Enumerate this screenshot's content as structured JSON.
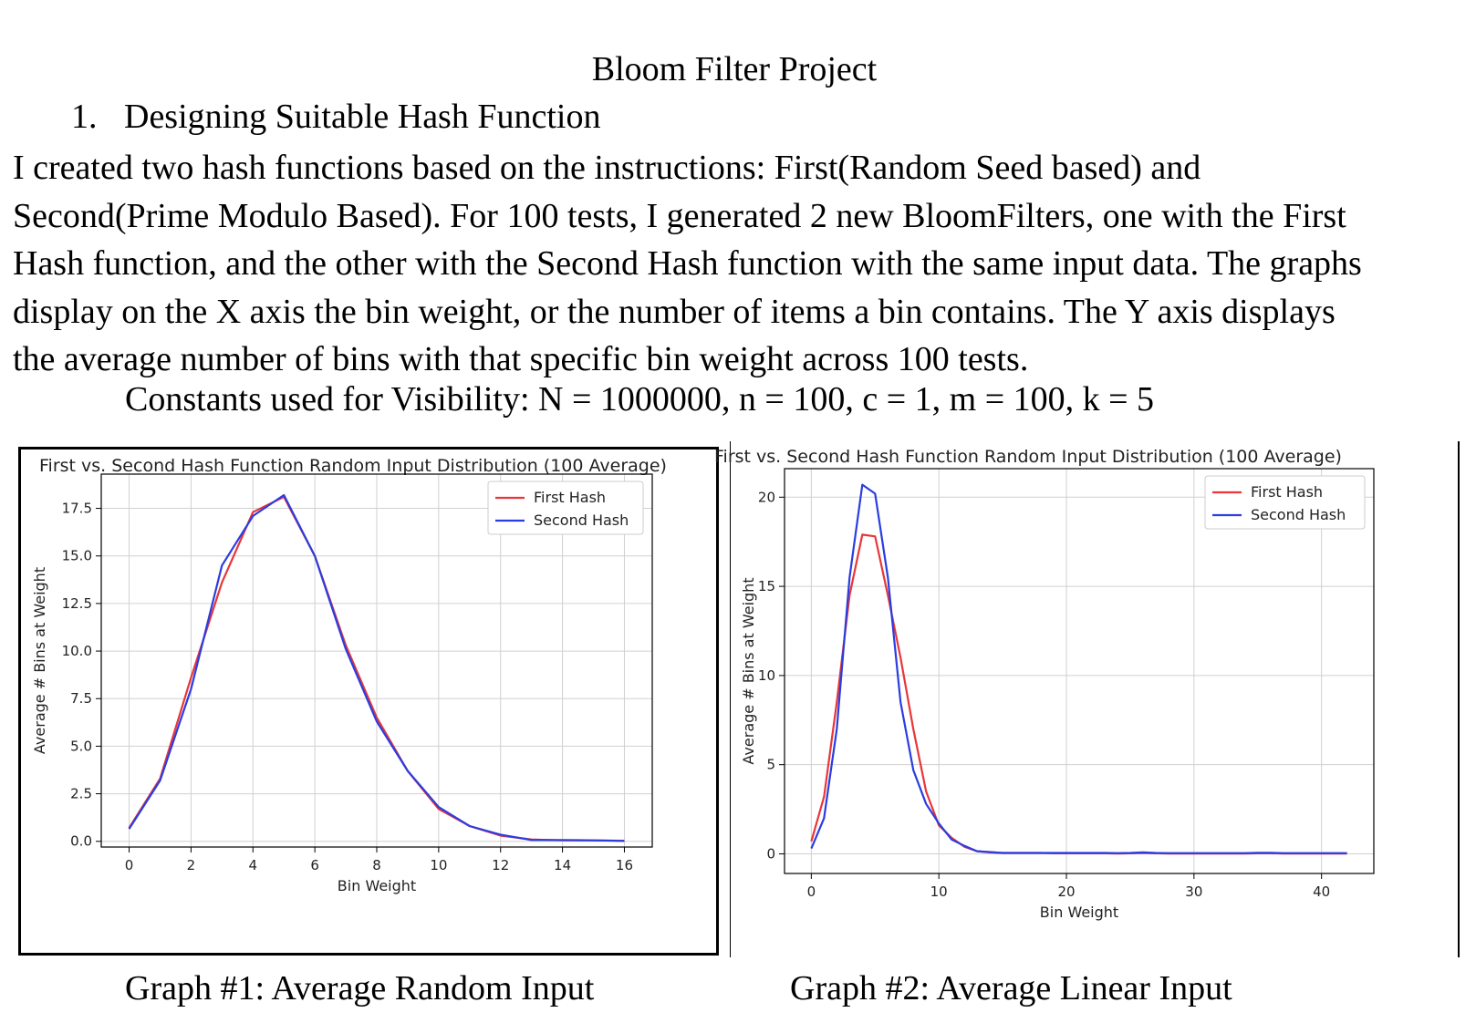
{
  "document": {
    "title": "Bloom Filter Project",
    "section": {
      "number": "1.",
      "heading": "Designing Suitable Hash Function"
    },
    "paragraph_lines": [
      "I created two hash functions based on the instructions: First(Random Seed based) and",
      "Second(Prime Modulo Based). For 100 tests,  I generated 2 new BloomFilters, one with the First",
      "Hash function, and the other with the Second Hash function with the same input data. The graphs",
      "display on the X axis the bin weight, or the number of items a bin contains. The Y axis displays",
      "the average number of bins with that specific bin weight across 100 tests."
    ],
    "constants": "Constants used for Visibility:  N = 1000000, n = 100, c = 1, m = 100, k = 5",
    "captions": [
      "Graph #1: Average Random Input",
      "Graph #2: Average Linear Input"
    ]
  },
  "colors": {
    "first": "#e8363a",
    "second": "#2a3de0",
    "grid": "#d0d0d0",
    "axis": "#000000"
  },
  "chart_data": [
    {
      "type": "line",
      "title": "First vs. Second Hash Function Random Input Distribution (100 Average)",
      "xlabel": "Bin Weight",
      "ylabel": "Average # Bins at Weight",
      "xlim": [
        -0.9,
        16.9
      ],
      "ylim": [
        -0.3,
        19.3
      ],
      "xticks": [
        0,
        2,
        4,
        6,
        8,
        10,
        12,
        14,
        16
      ],
      "yticks": [
        0.0,
        2.5,
        5.0,
        7.5,
        10.0,
        12.5,
        15.0,
        17.5
      ],
      "ytick_labels": [
        "0.0",
        "2.5",
        "5.0",
        "7.5",
        "10.0",
        "12.5",
        "15.0",
        "17.5"
      ],
      "legend": "top-right",
      "grid": true,
      "x": [
        0,
        1,
        2,
        3,
        4,
        5,
        6,
        7,
        8,
        9,
        10,
        11,
        12,
        13,
        14,
        15,
        16
      ],
      "series": [
        {
          "name": "First Hash",
          "color": "#e8363a",
          "values": [
            0.7,
            3.3,
            8.6,
            13.6,
            17.3,
            18.1,
            15.0,
            10.3,
            6.5,
            3.7,
            1.7,
            0.8,
            0.3,
            0.1,
            0.05,
            0.05,
            0.03
          ]
        },
        {
          "name": "Second Hash",
          "color": "#2a3de0",
          "values": [
            0.65,
            3.2,
            8.0,
            14.5,
            17.1,
            18.2,
            15.0,
            10.1,
            6.3,
            3.7,
            1.8,
            0.8,
            0.35,
            0.07,
            0.07,
            0.05,
            0.02
          ]
        }
      ]
    },
    {
      "type": "line",
      "title": "First vs. Second Hash Function Random Input Distribution (100 Average)",
      "xlabel": "Bin Weight",
      "ylabel": "Average # Bins at Weight",
      "xlim": [
        -2.1,
        44.1
      ],
      "ylim": [
        -1.1,
        21.6
      ],
      "xticks": [
        0,
        10,
        20,
        30,
        40
      ],
      "yticks": [
        0,
        5,
        10,
        15,
        20
      ],
      "ytick_labels": [
        "0",
        "5",
        "10",
        "15",
        "20"
      ],
      "legend": "top-right",
      "grid": true,
      "x": [
        0,
        1,
        2,
        3,
        4,
        5,
        6,
        7,
        8,
        9,
        10,
        11,
        12,
        13,
        14,
        15,
        16,
        17,
        18,
        19,
        20,
        21,
        22,
        23,
        24,
        25,
        26,
        27,
        28,
        29,
        30,
        31,
        32,
        33,
        34,
        35,
        36,
        37,
        38,
        39,
        40,
        41,
        42
      ],
      "series": [
        {
          "name": "First Hash",
          "color": "#e8363a",
          "values": [
            0.7,
            3.2,
            8.5,
            14.5,
            17.9,
            17.8,
            14.5,
            11.0,
            7.0,
            3.5,
            1.6,
            0.9,
            0.4,
            0.15,
            0.08,
            0.05,
            0.05,
            0.05,
            0.05,
            0.03,
            0.03,
            0.03,
            0.03,
            0.03,
            0.02,
            0.03,
            0.05,
            0.03,
            0.02,
            0.02,
            0.02,
            0.02,
            0.02,
            0.02,
            0.02,
            0.03,
            0.03,
            0.02,
            0.02,
            0.02,
            0.02,
            0.02,
            0.02
          ]
        },
        {
          "name": "Second Hash",
          "color": "#2a3de0",
          "values": [
            0.3,
            2.0,
            7.0,
            15.5,
            20.7,
            20.2,
            15.5,
            8.5,
            4.7,
            2.8,
            1.7,
            0.8,
            0.45,
            0.15,
            0.1,
            0.05,
            0.05,
            0.05,
            0.05,
            0.05,
            0.05,
            0.05,
            0.05,
            0.05,
            0.04,
            0.05,
            0.08,
            0.05,
            0.04,
            0.04,
            0.04,
            0.04,
            0.04,
            0.04,
            0.04,
            0.06,
            0.06,
            0.04,
            0.04,
            0.04,
            0.04,
            0.04,
            0.04
          ]
        }
      ]
    }
  ]
}
